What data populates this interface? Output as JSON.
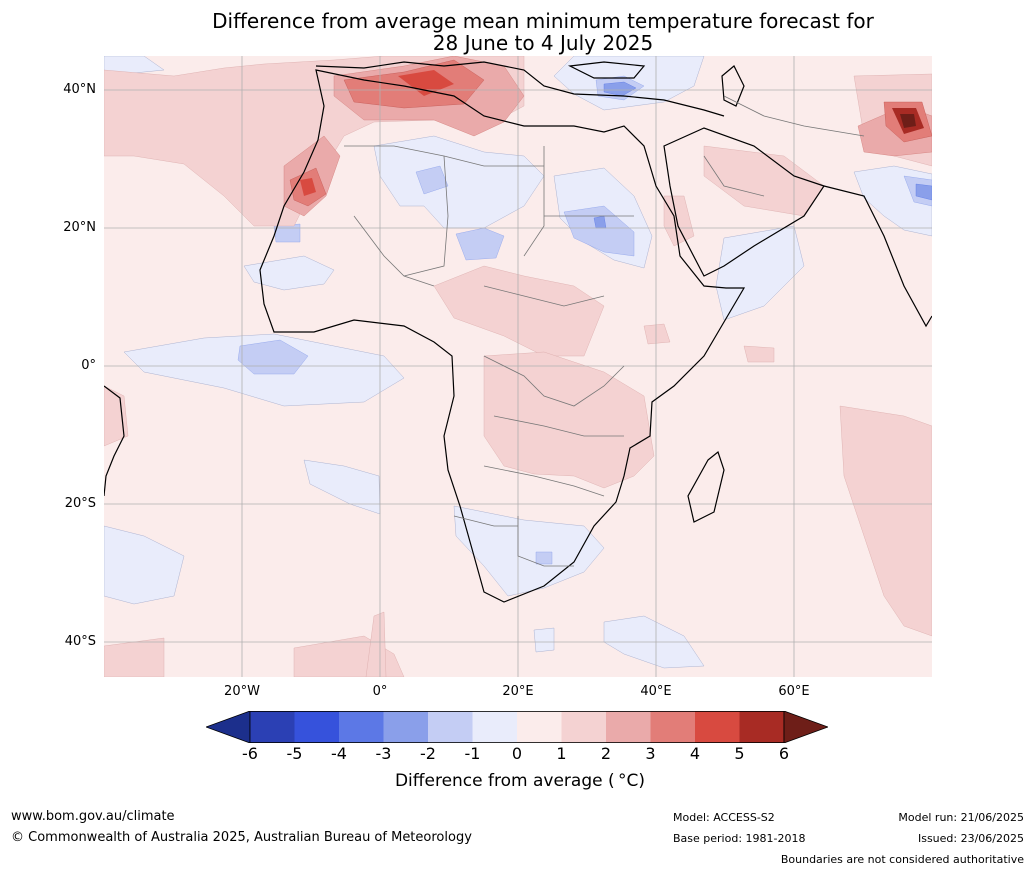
{
  "title_line1": "Difference from average mean minimum temperature forecast for",
  "title_line2": "28 June to 4 July 2025",
  "lat_labels": [
    "40°N",
    "20°N",
    "0°",
    "20°S",
    "40°S"
  ],
  "lon_labels": [
    "20°W",
    "0°",
    "20°E",
    "40°E",
    "60°E"
  ],
  "colorbar": {
    "ticks": [
      "-6",
      "-5",
      "-4",
      "-3",
      "-2",
      "-1",
      "0",
      "1",
      "2",
      "3",
      "4",
      "5",
      "6"
    ],
    "label": "Difference from average ( °C)",
    "colors": [
      "#1c2f8c",
      "#2b40b4",
      "#3652dc",
      "#5c78e6",
      "#8a9fea",
      "#c4cdf4",
      "#e9ecfb",
      "#fbeceb",
      "#f4d2d2",
      "#eaaaaa",
      "#e27d78",
      "#d84a40",
      "#a82b24",
      "#6e1e18"
    ]
  },
  "footer": {
    "website": "www.bom.gov.au/climate",
    "copyright": "© Commonwealth of Australia 2025, Australian Bureau of Meteorology",
    "model": "Model: ACCESS-S2",
    "base_period": "Base period: 1981-2018",
    "model_run": "Model run: 21/06/2025",
    "issued": "Issued: 23/06/2025",
    "disclaimer": "Boundaries are not considered authoritative"
  }
}
